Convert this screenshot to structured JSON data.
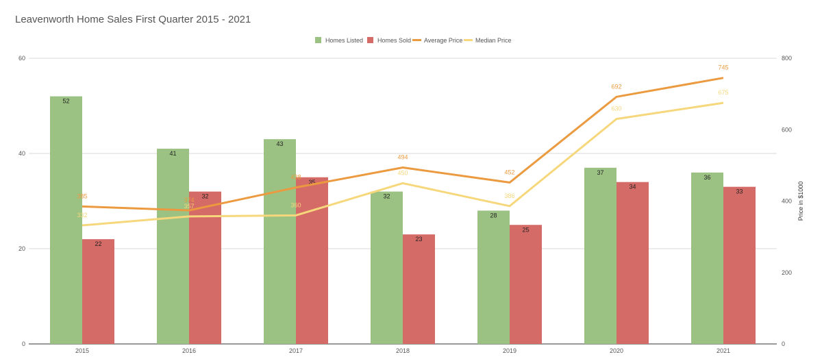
{
  "chart_data": {
    "type": "bar",
    "title": "Leavenworth Home Sales First Quarter 2015 - 2021",
    "categories": [
      "2015",
      "2016",
      "2017",
      "2018",
      "2019",
      "2020",
      "2021"
    ],
    "series": [
      {
        "name": "Homes Listed",
        "type": "bar",
        "axis": "left",
        "color": "#9bc282",
        "values": [
          52,
          41,
          43,
          32,
          28,
          37,
          36
        ]
      },
      {
        "name": "Homes Sold",
        "type": "bar",
        "axis": "left",
        "color": "#d56b67",
        "values": [
          22,
          32,
          35,
          23,
          25,
          34,
          33
        ]
      },
      {
        "name": "Average Price",
        "type": "line",
        "axis": "right",
        "color": "#eb9a3f",
        "values": [
          385,
          374,
          438,
          494,
          452,
          692,
          745
        ]
      },
      {
        "name": "Median Price",
        "type": "line",
        "axis": "right",
        "color": "#f6d77c",
        "values": [
          332,
          357,
          360,
          450,
          386,
          630,
          675
        ]
      }
    ],
    "y_left": {
      "label": "",
      "ylim": [
        0,
        60
      ],
      "ticks": [
        0,
        20,
        40,
        60
      ]
    },
    "y_right": {
      "label": "Price in $1000",
      "ylim": [
        0,
        800
      ],
      "ticks": [
        0,
        200,
        400,
        600,
        800
      ]
    },
    "grid": true,
    "legend": "top-center"
  }
}
